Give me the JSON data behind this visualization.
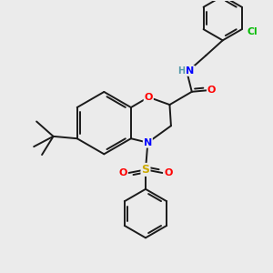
{
  "background_color": "#ebebeb",
  "bond_color": "#1a1a1a",
  "atom_colors": {
    "O": "#ff0000",
    "N": "#0000ff",
    "S": "#ccaa00",
    "Cl": "#00bb00",
    "H": "#5599aa",
    "C": "#1a1a1a"
  },
  "figsize": [
    3.0,
    3.0
  ],
  "dpi": 100,
  "lw": 1.4,
  "fs": 7.5
}
